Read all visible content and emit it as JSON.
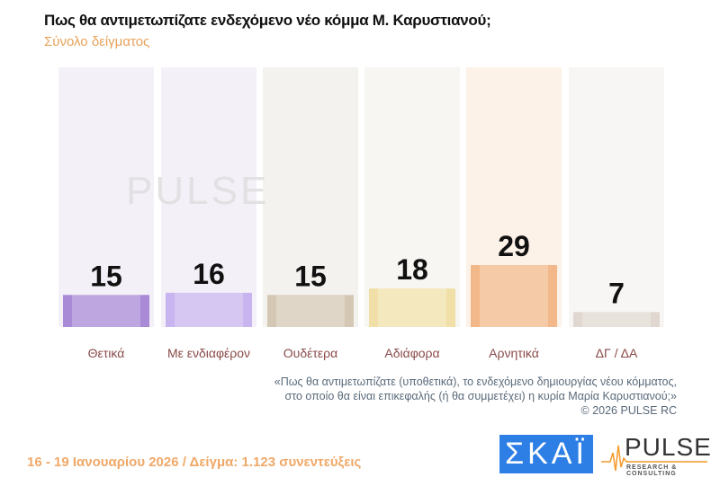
{
  "header": {
    "title": "Πως θα αντιμετωπίζατε ενδεχόμενο νέο κόμμα Μ. Καρυστιανού;",
    "subtitle": "Σύνολο δείγματος"
  },
  "chart_data": {
    "type": "bar",
    "categories": [
      "Θετικά",
      "Με ενδιαφέρον",
      "Ουδέτερα",
      "Αδιάφορα",
      "Αρνητικά",
      "ΔΓ / ΔΑ"
    ],
    "values": [
      15,
      16,
      15,
      18,
      29,
      7
    ],
    "colors": [
      "#a98ad6",
      "#c8b4ee",
      "#d4c8b4",
      "#f0e0a8",
      "#f2b88a",
      "#e0d8d0"
    ],
    "column_bg": [
      "#f4f0f8",
      "#f4f0f8",
      "#f4f2ee",
      "#f7f6f2",
      "#fdf2e8",
      "#f8f6f4"
    ],
    "grid": false,
    "ylim": [
      0,
      120
    ]
  },
  "note": {
    "line1": "«Πως θα αντιμετωπίζατε (υποθετικά), το ενδεχόμενο δημιουργίας νέου κόμματος,",
    "line2": "στο οποίο θα είναι επικεφαλής (ή θα συμμετέχει) η κυρία Μαρία Καρυστιανού;»",
    "line3": "©  2026  PULSE RC"
  },
  "footer": {
    "text": "16 - 19 Ιανουαρίου 2026  /  Δείγμα:  1.123 συνεντεύξεις"
  },
  "logos": {
    "skai": "ΣΚΑΪ",
    "pulse": "PULSE",
    "pulse_sub": "RESEARCH & CONSULTING",
    "watermark": "PULSE"
  }
}
